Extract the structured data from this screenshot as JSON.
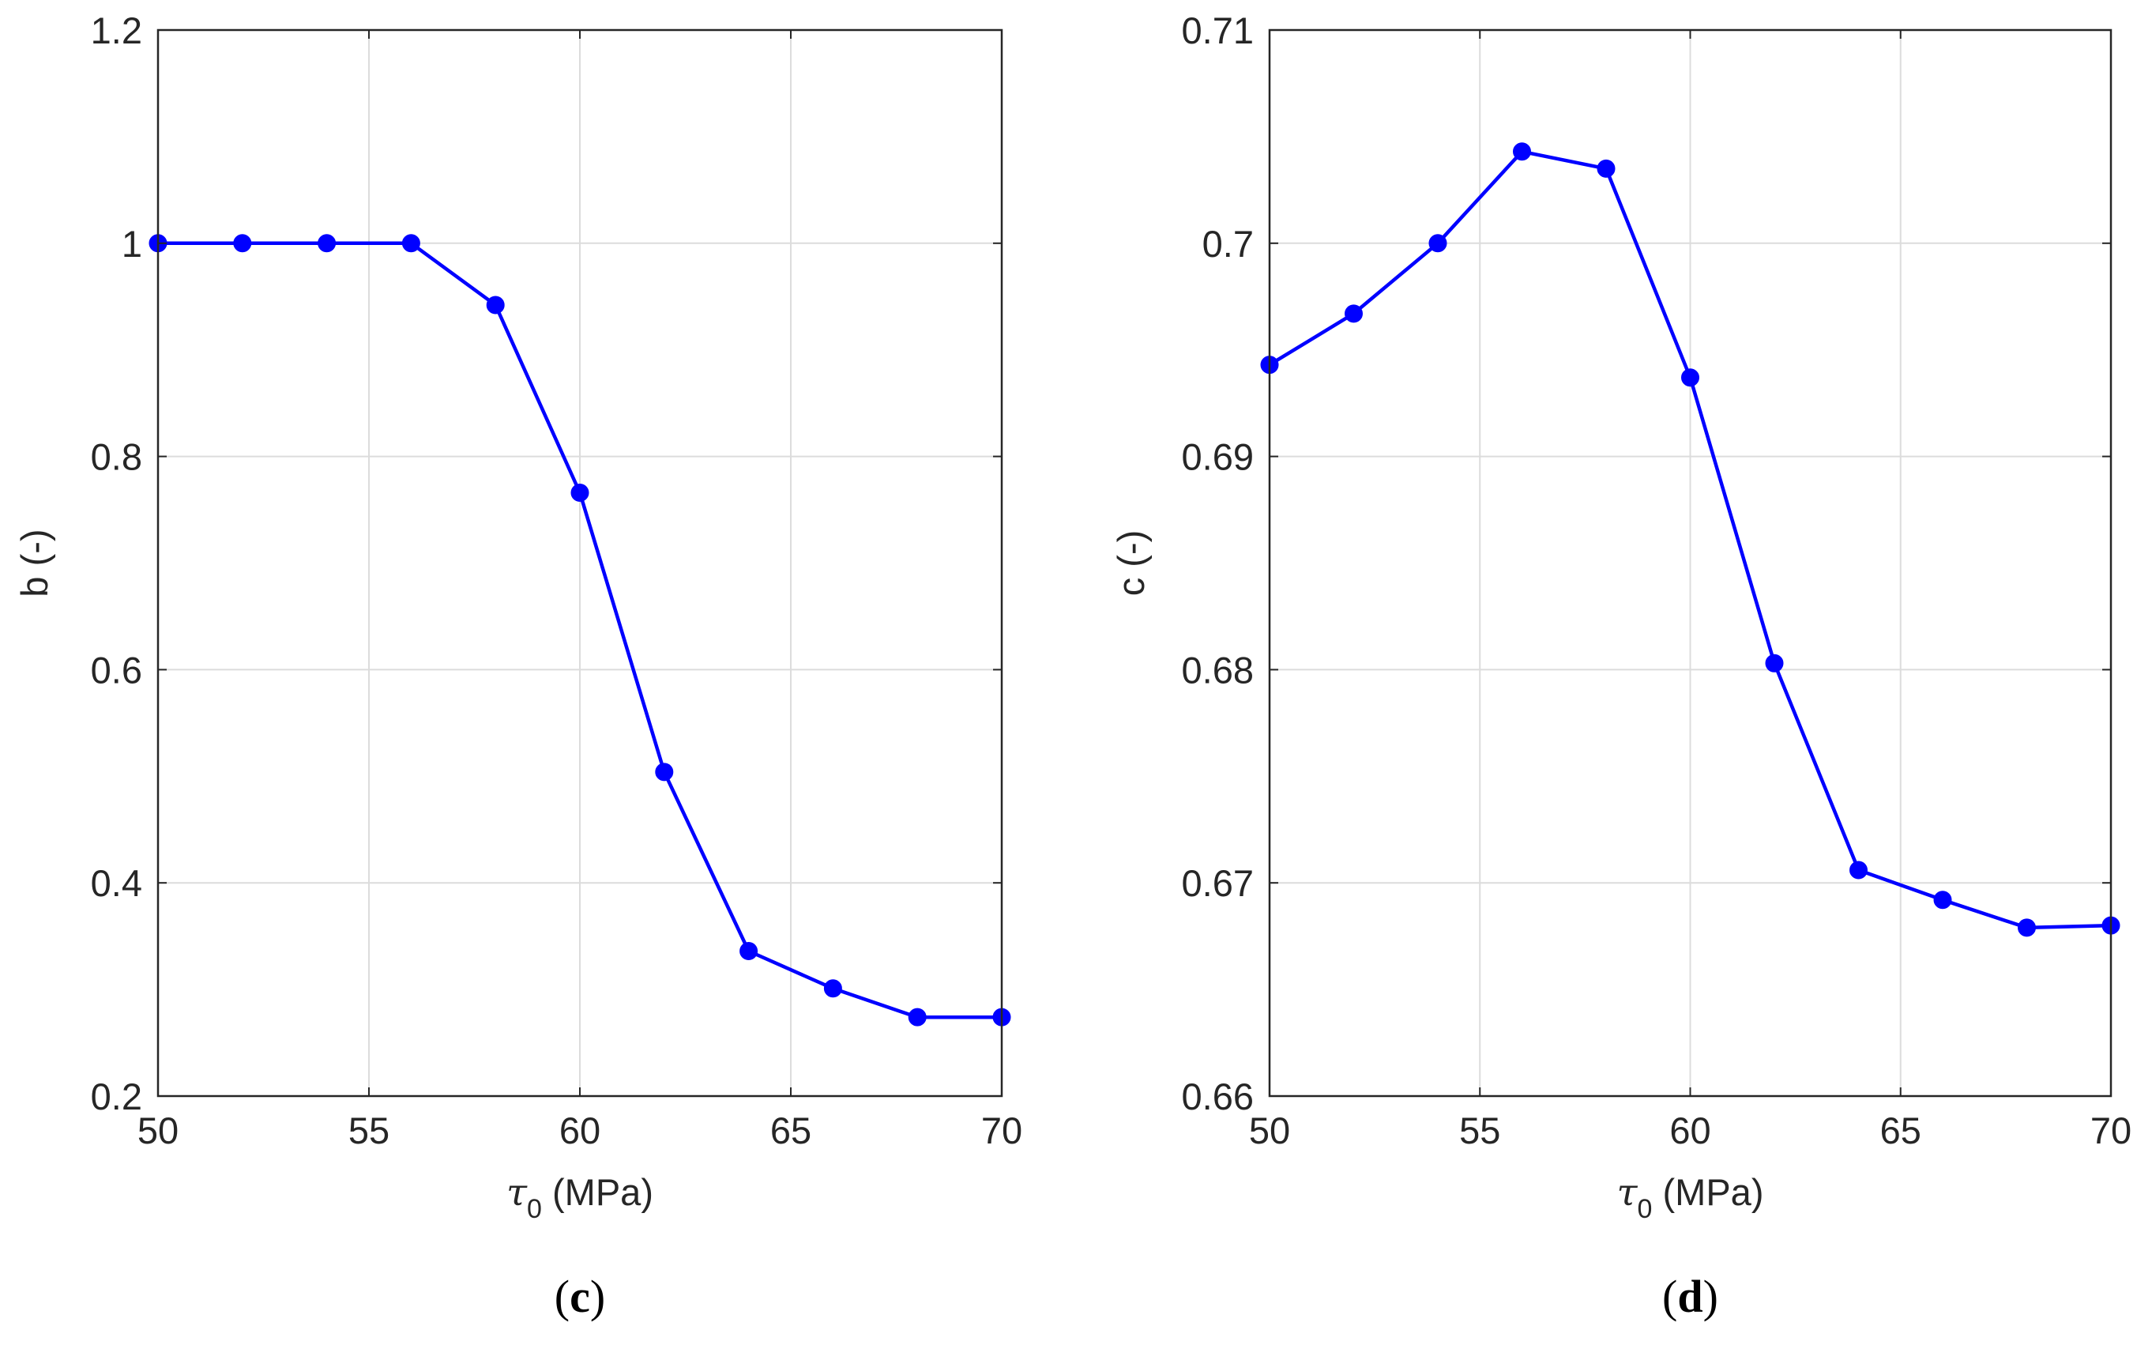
{
  "colors": {
    "series": "#0000ff",
    "axis": "#262626",
    "grid": "#dcdcdc",
    "background": "#ffffff"
  },
  "chart_data": [
    {
      "type": "line",
      "panel_label": {
        "open": "(",
        "letter": "c",
        "close": ")"
      },
      "title": "",
      "xlabel": {
        "symbol": "τ",
        "subscript": "0",
        "unit": " (MPa)"
      },
      "ylabel": "b (-)",
      "xlim": [
        50,
        70
      ],
      "ylim": [
        0.2,
        1.2
      ],
      "xticks": [
        50,
        55,
        60,
        65,
        70
      ],
      "xtick_labels": [
        "50",
        "55",
        "60",
        "65",
        "70"
      ],
      "yticks": [
        0.2,
        0.4,
        0.6,
        0.8,
        1.0,
        1.2
      ],
      "ytick_labels": [
        "0.2",
        "0.4",
        "0.6",
        "0.8",
        "1",
        "1.2"
      ],
      "grid": true,
      "marker": "circle",
      "series": [
        {
          "name": "b",
          "x": [
            50,
            52,
            54,
            56,
            58,
            60,
            62,
            64,
            66,
            68,
            70
          ],
          "values": [
            1.0,
            1.0,
            1.0,
            1.0,
            0.942,
            0.766,
            0.504,
            0.336,
            0.301,
            0.274,
            0.274
          ]
        }
      ]
    },
    {
      "type": "line",
      "panel_label": {
        "open": "(",
        "letter": "d",
        "close": ")"
      },
      "title": "",
      "xlabel": {
        "symbol": "τ",
        "subscript": "0",
        "unit": " (MPa)"
      },
      "ylabel": "c (-)",
      "xlim": [
        50,
        70
      ],
      "ylim": [
        0.66,
        0.71
      ],
      "xticks": [
        50,
        55,
        60,
        65,
        70
      ],
      "xtick_labels": [
        "50",
        "55",
        "60",
        "65",
        "70"
      ],
      "yticks": [
        0.66,
        0.67,
        0.68,
        0.69,
        0.7,
        0.71
      ],
      "ytick_labels": [
        "0.66",
        "0.67",
        "0.68",
        "0.69",
        "0.7",
        "0.71"
      ],
      "grid": true,
      "marker": "circle",
      "series": [
        {
          "name": "c",
          "x": [
            50,
            52,
            54,
            56,
            58,
            60,
            62,
            64,
            66,
            68,
            70
          ],
          "values": [
            0.6943,
            0.6967,
            0.7,
            0.7043,
            0.7035,
            0.6937,
            0.6803,
            0.6706,
            0.6692,
            0.6679,
            0.668
          ]
        }
      ]
    }
  ]
}
